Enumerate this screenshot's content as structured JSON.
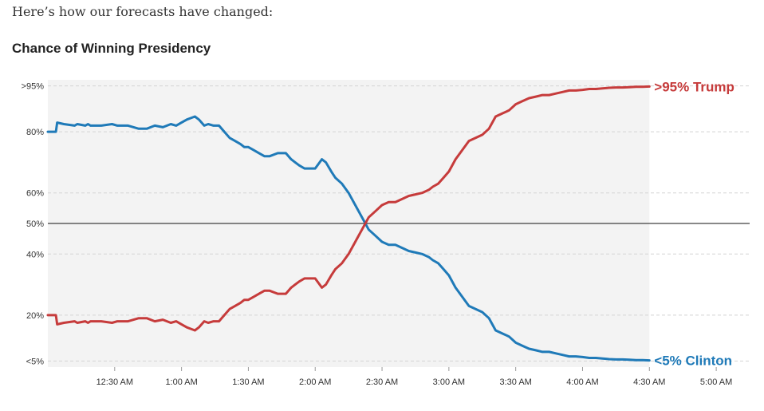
{
  "intro_text": "Here’s how our forecasts have changed:",
  "chart_data": {
    "type": "line",
    "title": "Chance of Winning Presidency",
    "xlabel": "",
    "ylabel": "",
    "x_unit": "hours_after_midnight",
    "xlim": [
      0.0,
      5.25
    ],
    "ylim": [
      3,
      97
    ],
    "y_ticks": [
      {
        "value": 95,
        "label": ">95%"
      },
      {
        "value": 80,
        "label": "80%"
      },
      {
        "value": 60,
        "label": "60%"
      },
      {
        "value": 50,
        "label": "50%"
      },
      {
        "value": 40,
        "label": "40%"
      },
      {
        "value": 20,
        "label": "20%"
      },
      {
        "value": 5,
        "label": "<5%"
      }
    ],
    "x_ticks": [
      {
        "value": 0.5,
        "label": "12:30 AM"
      },
      {
        "value": 1.0,
        "label": "1:00 AM"
      },
      {
        "value": 1.5,
        "label": "1:30 AM"
      },
      {
        "value": 2.0,
        "label": "2:00 AM"
      },
      {
        "value": 2.5,
        "label": "2:30 AM"
      },
      {
        "value": 3.0,
        "label": "3:00 AM"
      },
      {
        "value": 3.5,
        "label": "3:30 AM"
      },
      {
        "value": 4.0,
        "label": "4:00 AM"
      },
      {
        "value": 4.5,
        "label": "4:30 AM"
      },
      {
        "value": 5.0,
        "label": "5:00 AM"
      }
    ],
    "shaded_range": [
      0.0,
      4.5
    ],
    "reference_line": 50,
    "series": [
      {
        "name": "Clinton",
        "end_label": "<5% Clinton",
        "color": "#1f7ab8",
        "x": [
          0.0,
          0.06,
          0.07,
          0.12,
          0.2,
          0.22,
          0.28,
          0.3,
          0.32,
          0.4,
          0.48,
          0.52,
          0.56,
          0.6,
          0.68,
          0.74,
          0.8,
          0.86,
          0.92,
          0.96,
          1.0,
          1.04,
          1.07,
          1.1,
          1.13,
          1.17,
          1.2,
          1.24,
          1.28,
          1.32,
          1.36,
          1.4,
          1.44,
          1.47,
          1.5,
          1.54,
          1.58,
          1.62,
          1.66,
          1.72,
          1.78,
          1.82,
          1.85,
          1.88,
          1.92,
          1.96,
          2.0,
          2.05,
          2.08,
          2.12,
          2.15,
          2.2,
          2.25,
          2.3,
          2.35,
          2.4,
          2.45,
          2.5,
          2.55,
          2.6,
          2.65,
          2.7,
          2.75,
          2.8,
          2.85,
          2.88,
          2.92,
          2.96,
          3.0,
          3.05,
          3.1,
          3.15,
          3.2,
          3.25,
          3.3,
          3.35,
          3.4,
          3.45,
          3.5,
          3.55,
          3.6,
          3.65,
          3.7,
          3.75,
          3.8,
          3.85,
          3.9,
          3.95,
          4.0,
          4.05,
          4.1,
          4.15,
          4.2,
          4.25,
          4.3,
          4.35,
          4.4,
          4.45,
          4.5
        ],
        "y": [
          80,
          80,
          83,
          82.5,
          82,
          82.5,
          82,
          82.5,
          82,
          82,
          82.5,
          82,
          82,
          82,
          81,
          81,
          82,
          81.5,
          82.5,
          82,
          83,
          84,
          84.5,
          85,
          84,
          82,
          82.5,
          82,
          82,
          80,
          78,
          77,
          76,
          75,
          75,
          74,
          73,
          72,
          72,
          73,
          73,
          71,
          70,
          69,
          68,
          68,
          68,
          71,
          70,
          67,
          65,
          63,
          60,
          56,
          52,
          48,
          46,
          44,
          43,
          43,
          42,
          41,
          40.5,
          40,
          39,
          38,
          37,
          35,
          33,
          29,
          26,
          23,
          22,
          21,
          19,
          15,
          14,
          13,
          11,
          10,
          9,
          8.5,
          8,
          8,
          7.5,
          7,
          6.5,
          6.5,
          6.3,
          6,
          6,
          5.8,
          5.6,
          5.5,
          5.5,
          5.4,
          5.3,
          5.3,
          5.2
        ]
      },
      {
        "name": "Trump",
        "end_label": ">95% Trump",
        "color": "#c63b3b",
        "x": [
          0.0,
          0.06,
          0.07,
          0.12,
          0.2,
          0.22,
          0.28,
          0.3,
          0.32,
          0.4,
          0.48,
          0.52,
          0.56,
          0.6,
          0.68,
          0.74,
          0.8,
          0.86,
          0.92,
          0.96,
          1.0,
          1.04,
          1.07,
          1.1,
          1.13,
          1.17,
          1.2,
          1.24,
          1.28,
          1.32,
          1.36,
          1.4,
          1.44,
          1.47,
          1.5,
          1.54,
          1.58,
          1.62,
          1.66,
          1.72,
          1.78,
          1.82,
          1.85,
          1.88,
          1.92,
          1.96,
          2.0,
          2.05,
          2.08,
          2.12,
          2.15,
          2.2,
          2.25,
          2.3,
          2.35,
          2.4,
          2.45,
          2.5,
          2.55,
          2.6,
          2.65,
          2.7,
          2.75,
          2.8,
          2.85,
          2.88,
          2.92,
          2.96,
          3.0,
          3.05,
          3.1,
          3.15,
          3.2,
          3.25,
          3.3,
          3.35,
          3.4,
          3.45,
          3.5,
          3.55,
          3.6,
          3.65,
          3.7,
          3.75,
          3.8,
          3.85,
          3.9,
          3.95,
          4.0,
          4.05,
          4.1,
          4.15,
          4.2,
          4.25,
          4.3,
          4.35,
          4.4,
          4.45,
          4.5
        ],
        "y": [
          20,
          20,
          17,
          17.5,
          18,
          17.5,
          18,
          17.5,
          18,
          18,
          17.5,
          18,
          18,
          18,
          19,
          19,
          18,
          18.5,
          17.5,
          18,
          17,
          16,
          15.5,
          15,
          16,
          18,
          17.5,
          18,
          18,
          20,
          22,
          23,
          24,
          25,
          25,
          26,
          27,
          28,
          28,
          27,
          27,
          29,
          30,
          31,
          32,
          32,
          32,
          29,
          30,
          33,
          35,
          37,
          40,
          44,
          48,
          52,
          54,
          56,
          57,
          57,
          58,
          59,
          59.5,
          60,
          61,
          62,
          63,
          65,
          67,
          71,
          74,
          77,
          78,
          79,
          81,
          85,
          86,
          87,
          89,
          90,
          91,
          91.5,
          92,
          92,
          92.5,
          93,
          93.5,
          93.5,
          93.7,
          94,
          94,
          94.2,
          94.4,
          94.5,
          94.5,
          94.6,
          94.7,
          94.7,
          94.8
        ]
      }
    ]
  }
}
